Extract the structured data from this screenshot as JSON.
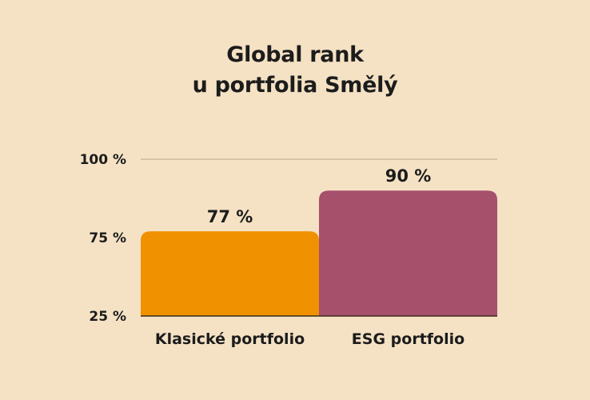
{
  "chart_data": {
    "type": "bar",
    "title": [
      "Global rank",
      "u portfolia Smělý"
    ],
    "categories": [
      "Klasické portfolio",
      "ESG portfolio"
    ],
    "values": [
      77,
      90
    ],
    "value_labels": [
      "77 %",
      "90 %"
    ],
    "colors": [
      "#f09200",
      "#a6506c"
    ],
    "yticks": [
      {
        "value": 25,
        "label": "25 %"
      },
      {
        "value": 75,
        "label": "75 %"
      },
      {
        "value": 100,
        "label": "100 %"
      }
    ],
    "grid": true,
    "legend": "none"
  },
  "colors": {
    "background": "#f5e2c4",
    "text": "#1c1c1c",
    "gridline": "#b7a58c",
    "baseline": "#3a2a1a"
  }
}
